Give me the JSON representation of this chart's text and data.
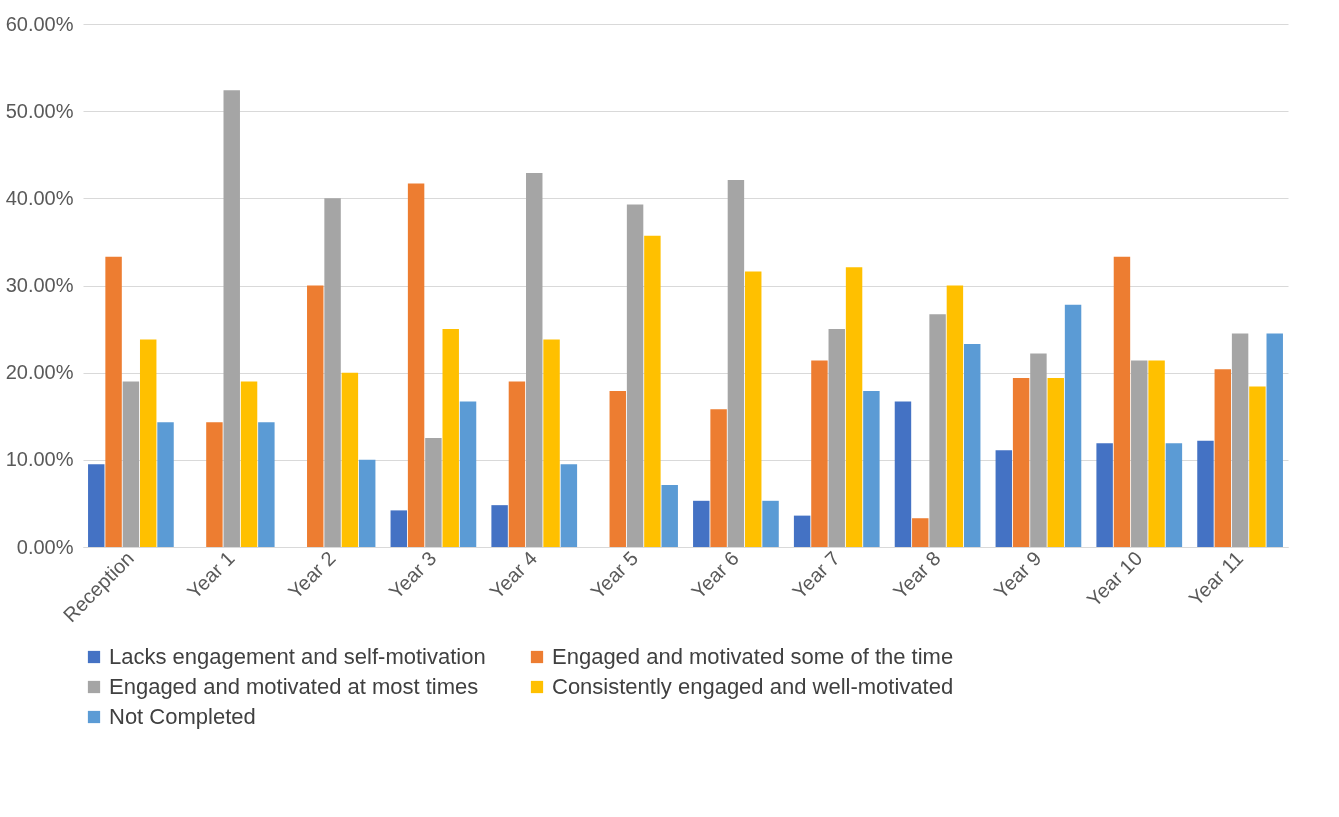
{
  "chart_data": {
    "type": "bar",
    "categories": [
      "Reception",
      "Year 1",
      "Year 2",
      "Year 3",
      "Year 4",
      "Year 5",
      "Year 6",
      "Year 7",
      "Year 8",
      "Year 9",
      "Year 10",
      "Year 11"
    ],
    "series": [
      {
        "name": "Lacks engagement and self-motivation",
        "color": "#4472c4",
        "values": [
          9.5,
          0,
          0,
          4.2,
          4.8,
          0,
          5.3,
          3.6,
          16.7,
          11.1,
          11.9,
          12.2
        ]
      },
      {
        "name": "Engaged and motivated some of the time",
        "color": "#ed7d31",
        "values": [
          33.3,
          14.3,
          30.0,
          41.7,
          19.0,
          17.9,
          15.8,
          21.4,
          3.3,
          19.4,
          33.3,
          20.4
        ]
      },
      {
        "name": "Engaged and motivated at most times",
        "color": "#a5a5a5",
        "values": [
          19.0,
          52.4,
          40.0,
          12.5,
          42.9,
          39.3,
          42.1,
          25.0,
          26.7,
          22.2,
          21.4,
          24.5
        ]
      },
      {
        "name": "Consistently engaged and well-motivated",
        "color": "#ffc000",
        "values": [
          23.8,
          19.0,
          20.0,
          25.0,
          23.8,
          35.7,
          31.6,
          32.1,
          30.0,
          19.4,
          21.4,
          18.4
        ]
      },
      {
        "name": "Not Completed",
        "color": "#5b9bd5",
        "values": [
          14.3,
          14.3,
          10.0,
          16.7,
          9.5,
          7.1,
          5.3,
          17.9,
          23.3,
          27.8,
          11.9,
          24.5
        ]
      }
    ],
    "ylim": [
      0,
      60
    ],
    "yticks": [
      {
        "value": 0,
        "label": "0.00%"
      },
      {
        "value": 10,
        "label": "10.00%"
      },
      {
        "value": 20,
        "label": "20.00%"
      },
      {
        "value": 30,
        "label": "30.00%"
      },
      {
        "value": 40,
        "label": "40.00%"
      },
      {
        "value": 50,
        "label": "50.00%"
      },
      {
        "value": 60,
        "label": "60.00%"
      }
    ],
    "grid": "y",
    "legend": "bottom"
  }
}
